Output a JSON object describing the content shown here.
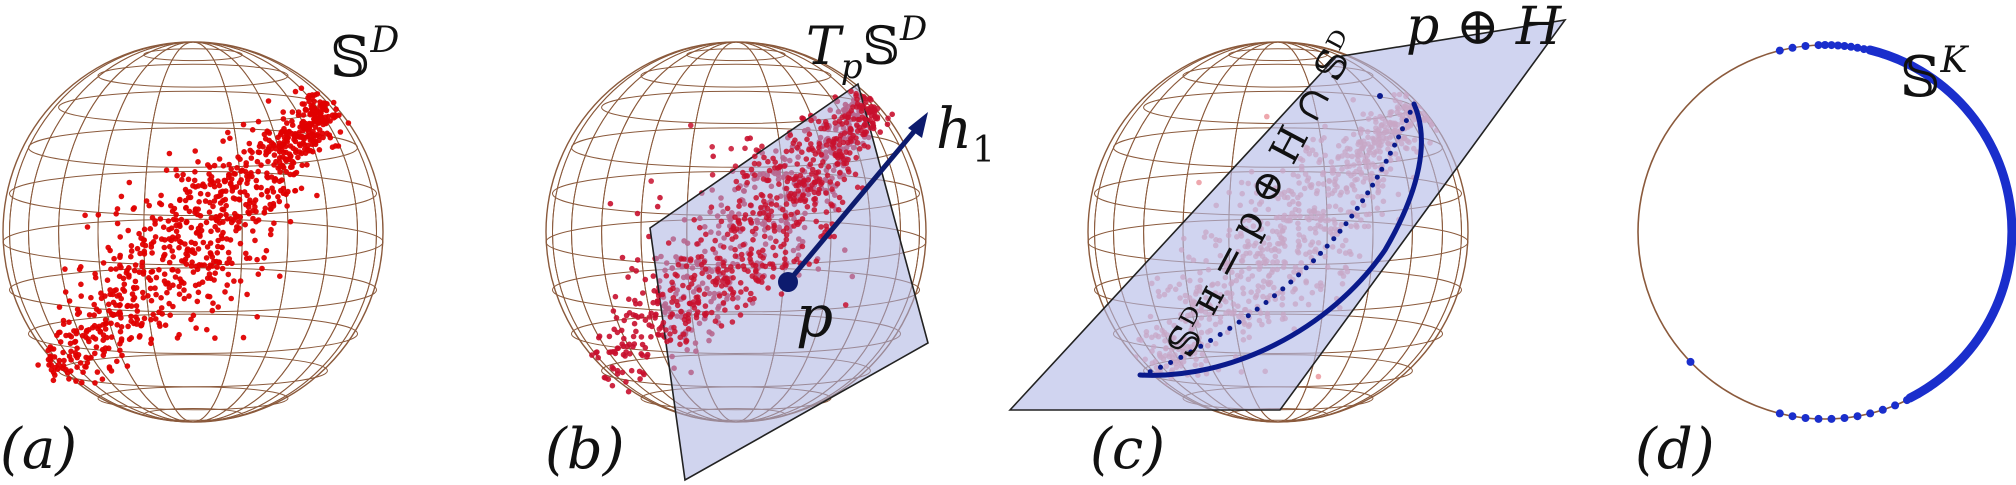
{
  "panels": [
    {
      "label": "(a)",
      "space_label": "𝕊",
      "space_sup": "D"
    },
    {
      "label": "(b)",
      "plane_label_main": "T",
      "plane_label_sub": "p",
      "plane_label_space": "𝕊",
      "plane_label_sup": "D",
      "vector_label": "h",
      "vector_sub": "1",
      "point_label": "p"
    },
    {
      "label": "(c)",
      "plane_label": "p ⊕ H",
      "curve_label": "𝕊ᴰʜ = p ⊕ H ∩ 𝕊ᴰ"
    },
    {
      "label": "(d)",
      "space_label": "𝕊",
      "space_sup": "K"
    }
  ],
  "colors": {
    "sphere_grid": "#8b5a3c",
    "points_a": "#e00000",
    "points_b": "#c8102e",
    "points_c": "#e88a92",
    "plane_fill": "#b3b9e6",
    "curve": "#0a1a8c",
    "vector": "#0d1b6e",
    "circle_points": "#1a2ecc"
  },
  "icons": [
    "wireframe-sphere",
    "tangent-plane",
    "subsphere-curve",
    "circle"
  ]
}
